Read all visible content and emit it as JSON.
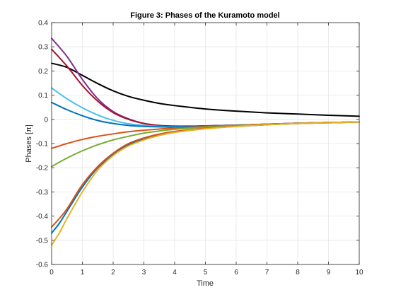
{
  "chart_data": {
    "type": "line",
    "title": "Figure 3: Phases of the Kuramoto model",
    "xlabel": "Time",
    "ylabel": "Phases [π]",
    "xlim": [
      0,
      10
    ],
    "ylim": [
      -0.6,
      0.4
    ],
    "xticks": [
      0,
      1,
      2,
      3,
      4,
      5,
      6,
      7,
      8,
      9,
      10
    ],
    "yticks": [
      -0.6,
      -0.5,
      -0.4,
      -0.3,
      -0.2,
      -0.1,
      0,
      0.1,
      0.2,
      0.3,
      0.4
    ],
    "grid": true,
    "series": [
      {
        "color": "#000000",
        "x": [
          0,
          0.5,
          1,
          1.5,
          2,
          2.5,
          3,
          3.5,
          4,
          5,
          6,
          7,
          8,
          9,
          10
        ],
        "y": [
          0.232,
          0.215,
          0.182,
          0.148,
          0.118,
          0.095,
          0.079,
          0.066,
          0.057,
          0.043,
          0.034,
          0.027,
          0.022,
          0.017,
          0.013
        ]
      },
      {
        "color": "#7E2F8E",
        "x": [
          0,
          0.5,
          1,
          1.5,
          2,
          2.5,
          3,
          3.5,
          4,
          4.5,
          5,
          6,
          7,
          8,
          9,
          10
        ],
        "y": [
          0.335,
          0.26,
          0.165,
          0.085,
          0.032,
          0.002,
          -0.017,
          -0.026,
          -0.028,
          -0.028,
          -0.027,
          -0.024,
          -0.02,
          -0.016,
          -0.013,
          -0.011
        ]
      },
      {
        "color": "#A2142F",
        "x": [
          0,
          0.5,
          1,
          1.5,
          2,
          2.5,
          3,
          3.5,
          4,
          4.5,
          5,
          6,
          7,
          8,
          9,
          10
        ],
        "y": [
          0.29,
          0.22,
          0.14,
          0.075,
          0.028,
          0.0,
          -0.017,
          -0.025,
          -0.028,
          -0.028,
          -0.027,
          -0.024,
          -0.02,
          -0.016,
          -0.013,
          -0.011
        ]
      },
      {
        "color": "#4DBEEE",
        "x": [
          0,
          0.5,
          1,
          1.5,
          2,
          2.5,
          3,
          3.5,
          4,
          5,
          6,
          7,
          8,
          9,
          10
        ],
        "y": [
          0.13,
          0.085,
          0.048,
          0.018,
          -0.004,
          -0.018,
          -0.025,
          -0.029,
          -0.03,
          -0.028,
          -0.024,
          -0.02,
          -0.016,
          -0.013,
          -0.011
        ]
      },
      {
        "color": "#0072BD",
        "x": [
          0,
          0.5,
          1,
          1.5,
          2,
          2.5,
          3,
          3.5,
          4,
          5,
          6,
          7,
          8,
          9,
          10
        ],
        "y": [
          0.07,
          0.04,
          0.015,
          -0.005,
          -0.017,
          -0.025,
          -0.029,
          -0.031,
          -0.031,
          -0.028,
          -0.024,
          -0.02,
          -0.016,
          -0.013,
          -0.011
        ]
      },
      {
        "color": "#D95319",
        "x": [
          0,
          0.5,
          1,
          1.5,
          2,
          2.5,
          3,
          3.5,
          4,
          5,
          6,
          7,
          8,
          9,
          10
        ],
        "y": [
          -0.12,
          -0.1,
          -0.083,
          -0.07,
          -0.06,
          -0.051,
          -0.045,
          -0.04,
          -0.036,
          -0.03,
          -0.025,
          -0.02,
          -0.016,
          -0.013,
          -0.011
        ]
      },
      {
        "color": "#77AC30",
        "x": [
          0,
          0.5,
          1,
          1.5,
          2,
          2.5,
          3,
          3.5,
          4,
          5,
          6,
          7,
          8,
          9,
          10
        ],
        "y": [
          -0.195,
          -0.16,
          -0.13,
          -0.105,
          -0.085,
          -0.07,
          -0.057,
          -0.048,
          -0.041,
          -0.032,
          -0.026,
          -0.021,
          -0.017,
          -0.014,
          -0.011
        ]
      },
      {
        "color": "#0072BD",
        "x": [
          0,
          0.25,
          0.5,
          1,
          1.5,
          2,
          2.5,
          3,
          3.5,
          4,
          5,
          6,
          7,
          8,
          9,
          10
        ],
        "y": [
          -0.47,
          -0.43,
          -0.38,
          -0.28,
          -0.2,
          -0.145,
          -0.105,
          -0.08,
          -0.063,
          -0.052,
          -0.038,
          -0.029,
          -0.022,
          -0.017,
          -0.014,
          -0.011
        ]
      },
      {
        "color": "#D95319",
        "x": [
          0,
          0.25,
          0.5,
          1,
          1.5,
          2,
          2.5,
          3,
          3.5,
          4,
          5,
          6,
          7,
          8,
          9,
          10
        ],
        "y": [
          -0.445,
          -0.41,
          -0.37,
          -0.27,
          -0.195,
          -0.14,
          -0.1,
          -0.077,
          -0.061,
          -0.05,
          -0.037,
          -0.028,
          -0.022,
          -0.017,
          -0.014,
          -0.011
        ]
      },
      {
        "color": "#EDB120",
        "x": [
          0,
          0.25,
          0.5,
          1,
          1.5,
          2,
          2.5,
          3,
          3.5,
          4,
          5,
          6,
          7,
          8,
          9,
          10
        ],
        "y": [
          -0.52,
          -0.47,
          -0.41,
          -0.3,
          -0.21,
          -0.15,
          -0.11,
          -0.085,
          -0.067,
          -0.054,
          -0.039,
          -0.029,
          -0.022,
          -0.017,
          -0.014,
          -0.011
        ]
      }
    ]
  }
}
